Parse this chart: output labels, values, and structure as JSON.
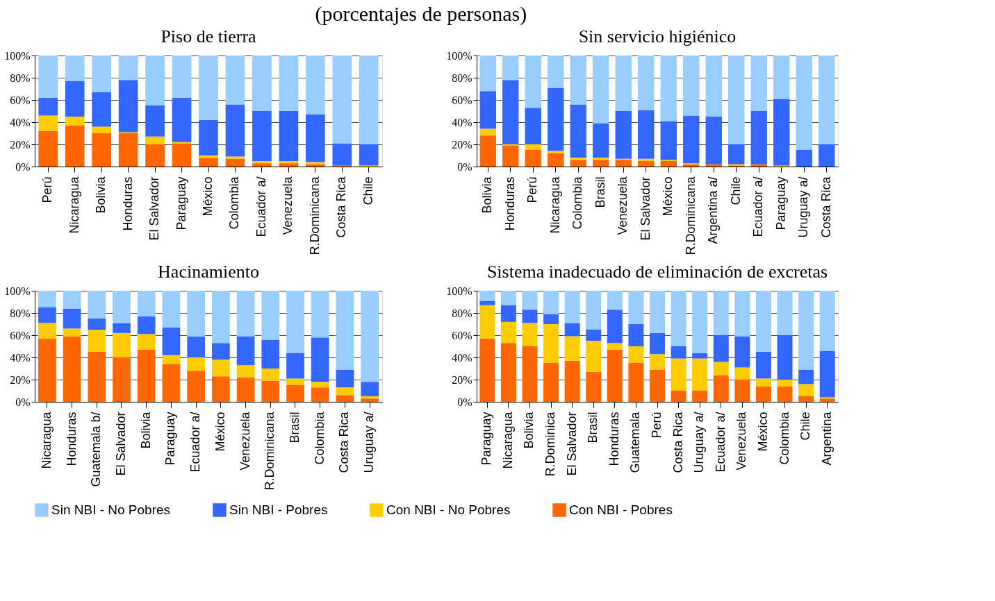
{
  "chart_data": [
    {
      "type": "bar",
      "title": "Piso de tierra",
      "annotations": [
        "(porcentajes de personas)"
      ],
      "stacked": true,
      "grid": "y",
      "legend": "bottom",
      "categories": [
        "Perú",
        "Nicaragua",
        "Bolivia",
        "Honduras",
        "El Salvador",
        "Paraguay",
        "México",
        "Colombia",
        "Ecuador a/",
        "Venezuela",
        "R.Dominicana",
        "Costa Rica",
        "Chile"
      ],
      "ylim": [
        0,
        100
      ],
      "yticks": [
        {
          "value": 0,
          "label": "0%"
        },
        {
          "value": 20,
          "label": "20%"
        },
        {
          "value": 40,
          "label": "40%"
        },
        {
          "value": 60,
          "label": "60%"
        },
        {
          "value": 80,
          "label": "80%"
        },
        {
          "value": 100,
          "label": "100%"
        }
      ],
      "series": [
        {
          "name": "Con NBI - Pobres",
          "color": "#ff6600",
          "values": [
            32,
            37,
            30,
            30,
            20,
            21,
            8,
            7,
            3,
            3,
            2,
            1,
            0
          ]
        },
        {
          "name": "Con NBI - No Pobres",
          "color": "#ffcc00",
          "values": [
            14,
            8,
            6,
            1,
            7,
            1,
            2,
            2,
            2,
            2,
            2,
            0,
            1
          ]
        },
        {
          "name": "Sin NBI - Pobres",
          "color": "#3366ff",
          "values": [
            16,
            32,
            31,
            47,
            28,
            40,
            32,
            47,
            45,
            45,
            43,
            20,
            19
          ]
        },
        {
          "name": "Sin NBI - No Pobres",
          "color": "#99ccff",
          "values": [
            38,
            23,
            33,
            22,
            45,
            38,
            58,
            44,
            50,
            50,
            53,
            79,
            80
          ]
        }
      ]
    },
    {
      "type": "bar",
      "title": "Sin servicio higiénico",
      "stacked": true,
      "grid": "y",
      "legend": "bottom",
      "categories": [
        "Bolivia",
        "Honduras",
        "Perú",
        "Nicaragua",
        "Colombia",
        "Brasil",
        "Venezuela",
        "El Salvador",
        "México",
        "R.Dominicana",
        "Argentina a/",
        "Chile",
        "Ecuador a/",
        "Paraguay",
        "Uruguay a/",
        "Costa Rica"
      ],
      "ylim": [
        0,
        100
      ],
      "yticks": [
        {
          "value": 0,
          "label": "0%"
        },
        {
          "value": 20,
          "label": "20%"
        },
        {
          "value": 40,
          "label": "40%"
        },
        {
          "value": 60,
          "label": "60%"
        },
        {
          "value": 80,
          "label": "80%"
        },
        {
          "value": 100,
          "label": "100%"
        }
      ],
      "series": [
        {
          "name": "Con NBI - Pobres",
          "color": "#ff6600",
          "values": [
            28,
            19,
            15,
            12,
            6,
            6,
            6,
            5,
            5,
            2,
            2,
            1,
            2,
            0,
            0,
            0
          ]
        },
        {
          "name": "Con NBI - No Pobres",
          "color": "#ffcc00",
          "values": [
            6,
            1,
            5,
            2,
            2,
            2,
            1,
            2,
            1,
            1,
            0,
            1,
            0,
            1,
            0,
            0
          ]
        },
        {
          "name": "Sin NBI - Pobres",
          "color": "#3366ff",
          "values": [
            34,
            58,
            33,
            57,
            48,
            31,
            43,
            44,
            35,
            43,
            43,
            18,
            48,
            60,
            15,
            20
          ]
        },
        {
          "name": "Sin NBI - No Pobres",
          "color": "#99ccff",
          "values": [
            32,
            22,
            47,
            29,
            44,
            61,
            50,
            49,
            59,
            54,
            55,
            80,
            50,
            39,
            85,
            80
          ]
        }
      ]
    },
    {
      "type": "bar",
      "title": "Hacinamiento",
      "stacked": true,
      "grid": "y",
      "legend": "bottom",
      "categories": [
        "Nicaragua",
        "Honduras",
        "Guatemala b/",
        "El Salvador",
        "Bolivia",
        "Paraguay",
        "Ecuador a/",
        "México",
        "Venezuela",
        "R.Dominicana",
        "Brasil",
        "Colombia",
        "Costa Rica",
        "Uruguay a/"
      ],
      "ylim": [
        0,
        100
      ],
      "yticks": [
        {
          "value": 0,
          "label": "0%"
        },
        {
          "value": 20,
          "label": "20%"
        },
        {
          "value": 40,
          "label": "40%"
        },
        {
          "value": 60,
          "label": "60%"
        },
        {
          "value": 80,
          "label": "80%"
        },
        {
          "value": 100,
          "label": "100%"
        }
      ],
      "series": [
        {
          "name": "Con NBI - Pobres",
          "color": "#ff6600",
          "values": [
            57,
            59,
            45,
            40,
            47,
            34,
            28,
            23,
            22,
            19,
            15,
            13,
            6,
            3
          ]
        },
        {
          "name": "Con NBI - No Pobres",
          "color": "#ffcc00",
          "values": [
            14,
            7,
            20,
            22,
            14,
            8,
            12,
            15,
            11,
            11,
            6,
            5,
            7,
            2
          ]
        },
        {
          "name": "Sin NBI - Pobres",
          "color": "#3366ff",
          "values": [
            14,
            18,
            10,
            9,
            16,
            25,
            19,
            15,
            26,
            26,
            23,
            40,
            16,
            13
          ]
        },
        {
          "name": "Sin NBI - No Pobres",
          "color": "#99ccff",
          "values": [
            15,
            16,
            25,
            29,
            23,
            33,
            41,
            47,
            41,
            44,
            56,
            42,
            71,
            82
          ]
        }
      ]
    },
    {
      "type": "bar",
      "title": "Sistema inadecuado de eliminación de excretas",
      "stacked": true,
      "grid": "y",
      "legend": "bottom",
      "categories": [
        "Paraguay",
        "Nicaragua",
        "Bolivia",
        "R.Dominica",
        "El Salvador",
        "Brasil",
        "Honduras",
        "Guatemala",
        "Perú",
        "Costa Rica",
        "Uruguay a/",
        "Ecuador a/",
        "Venezuela",
        "México",
        "Colombia",
        "Chile",
        "Argentina"
      ],
      "ylim": [
        0,
        100
      ],
      "yticks": [
        {
          "value": 0,
          "label": "0%"
        },
        {
          "value": 20,
          "label": "20%"
        },
        {
          "value": 40,
          "label": "40%"
        },
        {
          "value": 60,
          "label": "60%"
        },
        {
          "value": 80,
          "label": "80%"
        },
        {
          "value": 100,
          "label": "100%"
        }
      ],
      "series": [
        {
          "name": "Con NBI - Pobres",
          "color": "#ff6600",
          "values": [
            57,
            53,
            50,
            35,
            37,
            27,
            47,
            35,
            29,
            10,
            10,
            24,
            20,
            14,
            14,
            5,
            3
          ]
        },
        {
          "name": "Con NBI - No Pobres",
          "color": "#ffcc00",
          "values": [
            30,
            19,
            21,
            35,
            22,
            28,
            6,
            15,
            14,
            29,
            29,
            12,
            11,
            7,
            6,
            11,
            1
          ]
        },
        {
          "name": "Sin NBI - Pobres",
          "color": "#3366ff",
          "values": [
            4,
            15,
            12,
            9,
            12,
            10,
            30,
            20,
            19,
            11,
            5,
            24,
            28,
            24,
            40,
            13,
            42
          ]
        },
        {
          "name": "Sin NBI - No Pobres",
          "color": "#99ccff",
          "values": [
            9,
            13,
            17,
            21,
            29,
            35,
            17,
            30,
            38,
            50,
            56,
            40,
            41,
            55,
            40,
            71,
            54
          ]
        }
      ]
    }
  ]
}
